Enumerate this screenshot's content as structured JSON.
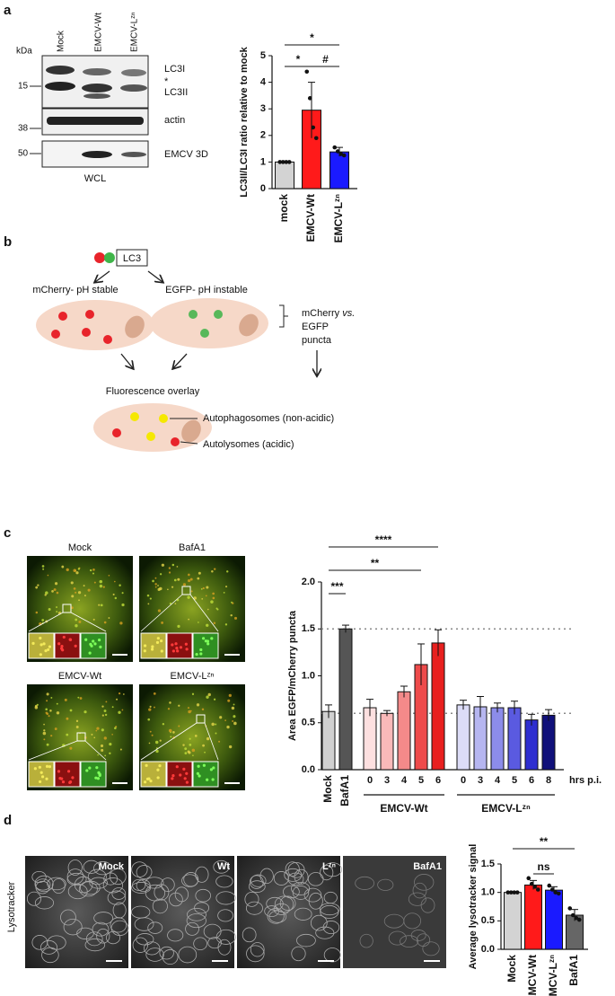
{
  "panel_labels": [
    "a",
    "b",
    "c",
    "d"
  ],
  "blot": {
    "kda": "kDa",
    "lanes": [
      "Mock",
      "EMCV-Wt",
      "EMCV-Lᶻⁿ"
    ],
    "markers": [
      "15",
      "38",
      "50"
    ],
    "bands": [
      "LC3I",
      "*",
      "LC3II",
      "actin",
      "EMCV 3D"
    ],
    "caption": "WCL"
  },
  "diagram": {
    "protein": "LC3",
    "left_label": "mCherry- pH stable",
    "right_label": "EGFP- pH instable",
    "comparison": {
      "first": "mCherry",
      "versus": "vs.",
      "second": "EGFP",
      "last": "puncta"
    },
    "overlay": "Fluorescence overlay",
    "yellow_note": "Autophagosomes (non-acidic)",
    "red_note": "Autolysomes (acidic)"
  },
  "micrographs_c": [
    "Mock",
    "BafA1",
    "EMCV-Wt",
    "EMCV-Lᶻⁿ"
  ],
  "micrographs_d": {
    "row_label": "Lysotracker",
    "labels": [
      "Mock",
      "Wt",
      "Lᶻⁿ",
      "BafA1"
    ]
  },
  "chart_data": [
    {
      "type": "bar",
      "ylabel": "LC3II/LC3I ratio relative to mock",
      "categories": [
        "mock",
        "EMCV-Wt",
        "EMCV-Lᶻⁿ"
      ],
      "values": [
        1.0,
        2.95,
        1.38
      ],
      "errors": [
        0.02,
        1.05,
        0.17
      ],
      "points": [
        [
          1,
          1,
          1,
          1
        ],
        [
          4.4,
          3.4,
          2.3,
          1.9
        ],
        [
          1.55,
          1.4,
          1.3,
          1.25
        ]
      ],
      "colors": [
        "#d3d3d3",
        "#ff1a1a",
        "#1a1aff"
      ],
      "ylim": [
        0,
        5
      ],
      "yticks": [
        0,
        1,
        2,
        3,
        4,
        5
      ],
      "annotations": [
        {
          "text": "*",
          "from": 0,
          "to": 2
        },
        {
          "text": "*",
          "from": 0,
          "to": 1
        },
        {
          "text": "#",
          "from": 1,
          "to": 2
        }
      ]
    },
    {
      "type": "bar",
      "ylabel": "Area EGFP/mCherry puncta",
      "categories": [
        "Mock",
        "BafA1",
        "0",
        "3",
        "4",
        "5",
        "6",
        "0",
        "3",
        "4",
        "5",
        "6",
        "8"
      ],
      "values": [
        0.62,
        1.5,
        0.66,
        0.6,
        0.83,
        1.12,
        1.35,
        0.69,
        0.67,
        0.66,
        0.66,
        0.53,
        0.58
      ],
      "errors": [
        0.07,
        0.04,
        0.09,
        0.03,
        0.06,
        0.22,
        0.14,
        0.05,
        0.11,
        0.05,
        0.07,
        0.06,
        0.06
      ],
      "colors": [
        "#d0d0d0",
        "#555555",
        "#fde0e0",
        "#f9b9b9",
        "#f48a8a",
        "#ee4b4b",
        "#e8201f",
        "#dcdcf7",
        "#b6b6f0",
        "#8c8cea",
        "#5a5ae0",
        "#2e2ed0",
        "#10107a"
      ],
      "ylim": [
        0,
        2
      ],
      "yticks": [
        {
          "value": 0,
          "label": "0.0"
        },
        {
          "value": 0.5,
          "label": "0.5"
        },
        {
          "value": 1,
          "label": "1.0"
        },
        {
          "value": 1.5,
          "label": "1.5"
        },
        {
          "value": 2,
          "label": "2.0"
        }
      ],
      "reference_lines": [
        1.5,
        0.6
      ],
      "groups": [
        {
          "label": "EMCV-Wt",
          "from": 2,
          "to": 6
        },
        {
          "label": "EMCV-Lᶻⁿ",
          "from": 7,
          "to": 12
        }
      ],
      "x_unit_label": "hrs p.i.",
      "annotations": [
        {
          "text": "****",
          "from": 0,
          "to": 6
        },
        {
          "text": "**",
          "from": 0,
          "to": 5
        },
        {
          "text": "***",
          "from": 0,
          "to": 1
        }
      ]
    },
    {
      "type": "bar",
      "ylabel": "Average lysotracker signal",
      "categories": [
        "Mock",
        "EMCV-Wt",
        "EMCV-Lᶻⁿ",
        "BafA1"
      ],
      "values": [
        1.0,
        1.13,
        1.04,
        0.6
      ],
      "errors": [
        0.01,
        0.08,
        0.06,
        0.1
      ],
      "points": [
        [
          1,
          1,
          1,
          1
        ],
        [
          1.25,
          1.15,
          1.1,
          1.05
        ],
        [
          1.12,
          1.05,
          1.0,
          0.98
        ],
        [
          0.72,
          0.6,
          0.55,
          0.52
        ]
      ],
      "colors": [
        "#d3d3d3",
        "#ff1a1a",
        "#1a1aff",
        "#666666"
      ],
      "ylim": [
        0,
        1.5
      ],
      "yticks": [
        {
          "value": 0,
          "label": "0.0"
        },
        {
          "value": 0.5,
          "label": "0.5"
        },
        {
          "value": 1,
          "label": "1.0"
        },
        {
          "value": 1.5,
          "label": "1.5"
        }
      ],
      "annotations": [
        {
          "text": "**",
          "from": 0,
          "to": 3
        },
        {
          "text": "ns",
          "from": 1,
          "to": 2
        }
      ]
    }
  ]
}
